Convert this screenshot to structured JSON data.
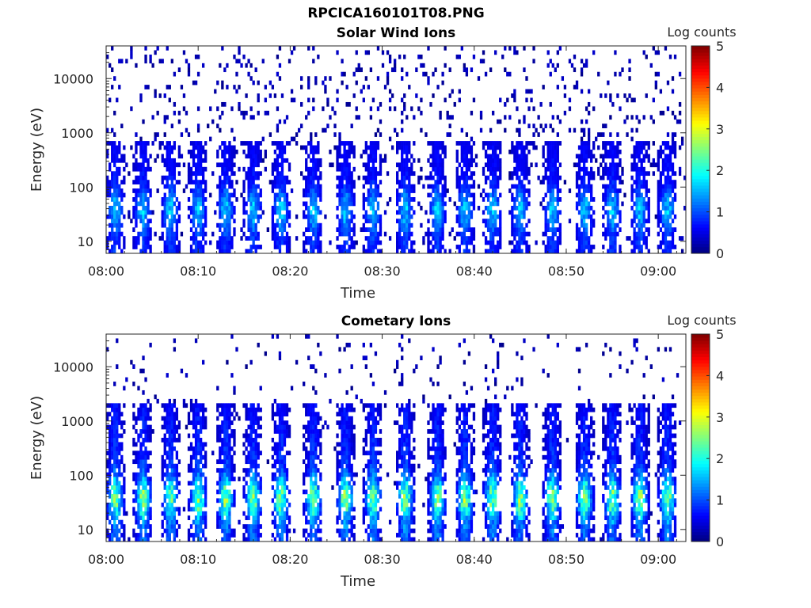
{
  "figure": {
    "title": "RPCICA160101T08.PNG"
  },
  "chart_data": [
    {
      "type": "heatmap",
      "title": "Solar Wind Ions",
      "xlabel": "Time",
      "ylabel": "Energy (eV)",
      "x_ticks": [
        "08:00",
        "08:10",
        "08:20",
        "08:30",
        "08:40",
        "08:50",
        "09:00"
      ],
      "x_range": [
        "08:00",
        "09:03"
      ],
      "y_scale": "log",
      "y_ticks": [
        10,
        100,
        1000,
        10000
      ],
      "y_tick_labels": [
        "10",
        "100",
        "1000",
        "10000"
      ],
      "y_range": [
        6,
        40000
      ],
      "colorbar": {
        "title": "Log counts",
        "ticks": [
          "0",
          "1",
          "2",
          "3",
          "4",
          "5"
        ],
        "range": [
          0,
          5
        ],
        "colormap": "jet"
      },
      "burst_times_min": [
        1,
        4,
        7,
        10,
        13,
        16,
        19,
        22.5,
        26,
        29,
        32.5,
        36,
        39,
        42,
        45,
        48.5,
        52,
        55,
        58,
        61
      ],
      "core_energy_range_eV": [
        6,
        700
      ],
      "peak_log_counts": 2.2,
      "background_log_counts": 0.3
    },
    {
      "type": "heatmap",
      "title": "Cometary Ions",
      "xlabel": "Time",
      "ylabel": "Energy (eV)",
      "x_ticks": [
        "08:00",
        "08:10",
        "08:20",
        "08:30",
        "08:40",
        "08:50",
        "09:00"
      ],
      "x_range": [
        "08:00",
        "09:03"
      ],
      "y_scale": "log",
      "y_ticks": [
        10,
        100,
        1000,
        10000
      ],
      "y_tick_labels": [
        "10",
        "100",
        "1000",
        "10000"
      ],
      "y_range": [
        6,
        40000
      ],
      "colorbar": {
        "title": "Log counts",
        "ticks": [
          "0",
          "1",
          "2",
          "3",
          "4",
          "5"
        ],
        "range": [
          0,
          5
        ],
        "colormap": "jet"
      },
      "burst_times_min": [
        1,
        4,
        7,
        10,
        13,
        16,
        19,
        22.5,
        26,
        29,
        32.5,
        36,
        39,
        42,
        45,
        48.5,
        52,
        55,
        58,
        61
      ],
      "core_energy_range_eV": [
        6,
        2000
      ],
      "peak_log_counts": 3.4,
      "background_log_counts": 0.2
    }
  ]
}
